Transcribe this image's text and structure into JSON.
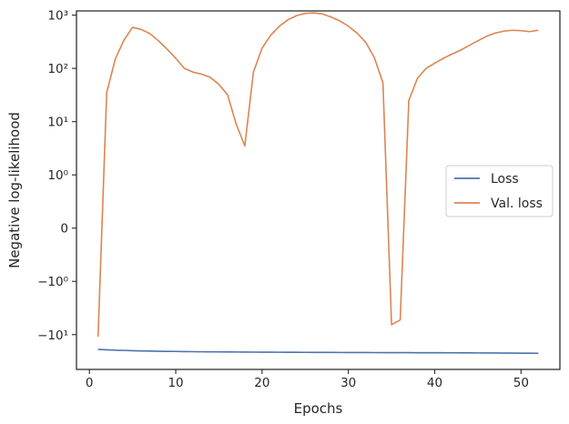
{
  "chart_data": {
    "type": "line",
    "xlabel": "Epochs",
    "ylabel": "Negative log-likelihood",
    "yscale": "symlog",
    "xlim": [
      -1.5,
      54.5
    ],
    "ylim": [
      -45,
      1200
    ],
    "grid": false,
    "legend_position": "center-right",
    "x_ticks": [
      0,
      10,
      20,
      30,
      40,
      50
    ],
    "x_tick_labels": [
      "0",
      "10",
      "20",
      "30",
      "40",
      "50"
    ],
    "y_ticks": [
      -10,
      -1,
      0,
      1,
      10,
      100,
      1000
    ],
    "y_tick_labels": [
      "−10¹",
      "−10⁰",
      "0",
      "10⁰",
      "10¹",
      "10²",
      "10³"
    ],
    "series": [
      {
        "name": "Loss",
        "color": "#4c72b0",
        "x": [
          1,
          2,
          3,
          4,
          5,
          6,
          7,
          8,
          9,
          10,
          11,
          12,
          13,
          14,
          15,
          16,
          17,
          18,
          19,
          20,
          21,
          22,
          23,
          24,
          25,
          26,
          27,
          28,
          29,
          30,
          31,
          32,
          33,
          34,
          35,
          36,
          37,
          38,
          39,
          40,
          41,
          42,
          43,
          44,
          45,
          46,
          47,
          48,
          49,
          50,
          51,
          52
        ],
        "y": [
          -19.0,
          -19.3,
          -19.6,
          -19.8,
          -20.0,
          -20.2,
          -20.35,
          -20.5,
          -20.6,
          -20.7,
          -20.8,
          -20.9,
          -21.0,
          -21.05,
          -21.1,
          -21.15,
          -21.2,
          -21.25,
          -21.3,
          -21.35,
          -21.4,
          -21.42,
          -21.45,
          -21.5,
          -21.52,
          -21.55,
          -21.58,
          -21.6,
          -21.62,
          -21.65,
          -21.68,
          -21.7,
          -21.72,
          -21.75,
          -21.78,
          -21.8,
          -21.82,
          -21.85,
          -21.88,
          -21.9,
          -21.92,
          -21.95,
          -21.98,
          -22.0,
          -22.05,
          -22.1,
          -22.15,
          -22.2,
          -22.25,
          -22.3,
          -22.35,
          -22.4
        ]
      },
      {
        "name": "Val. loss",
        "color": "#dd8452",
        "x": [
          1,
          2,
          3,
          4,
          5,
          6,
          7,
          8,
          9,
          10,
          11,
          12,
          13,
          14,
          15,
          16,
          17,
          18,
          19,
          20,
          21,
          22,
          23,
          24,
          25,
          26,
          27,
          28,
          29,
          30,
          31,
          32,
          33,
          34,
          35,
          36,
          37,
          38,
          39,
          40,
          41,
          42,
          43,
          44,
          45,
          46,
          47,
          48,
          49,
          50,
          51,
          52
        ],
        "y": [
          -11,
          35,
          150,
          340,
          590,
          540,
          450,
          330,
          230,
          155,
          100,
          85,
          78,
          68,
          50,
          32,
          9,
          3.5,
          85,
          240,
          420,
          620,
          820,
          980,
          1080,
          1100,
          1050,
          920,
          780,
          620,
          460,
          310,
          160,
          54,
          -6.5,
          -5.3,
          25,
          65,
          100,
          125,
          155,
          185,
          220,
          270,
          330,
          400,
          460,
          500,
          520,
          510,
          490,
          520
        ]
      }
    ]
  }
}
